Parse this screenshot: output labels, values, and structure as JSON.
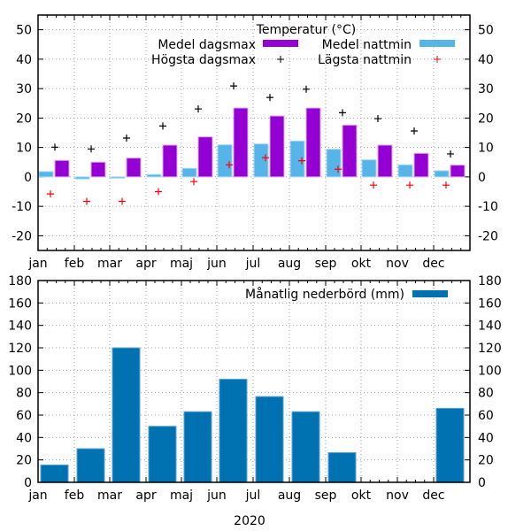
{
  "chart_data": [
    {
      "type": "bar",
      "title": "Temperatur (°C)",
      "categories": [
        "jan",
        "feb",
        "mar",
        "apr",
        "maj",
        "jun",
        "jul",
        "aug",
        "sep",
        "okt",
        "nov",
        "dec"
      ],
      "ylim": [
        -25,
        55
      ],
      "yticks": [
        -20,
        -10,
        0,
        10,
        20,
        30,
        40,
        50
      ],
      "grid": true,
      "legend": "top-right",
      "series": [
        {
          "name": "Medel dagsmax",
          "kind": "bar",
          "color": "#9400d3",
          "values": [
            5.6,
            5.0,
            6.4,
            10.8,
            13.6,
            23.4,
            20.7,
            23.4,
            17.6,
            10.8,
            8.0,
            4.0
          ]
        },
        {
          "name": "Medel nattmin",
          "kind": "bar",
          "color": "#56b4e9",
          "values": [
            1.8,
            -0.7,
            -0.4,
            0.8,
            2.9,
            10.9,
            11.2,
            12.2,
            9.4,
            5.8,
            4.1,
            2.1
          ]
        },
        {
          "name": "Högsta dagsmax",
          "kind": "point",
          "color": "#000000",
          "values": [
            10.1,
            9.5,
            13.2,
            17.3,
            23.1,
            30.9,
            27.0,
            29.8,
            21.8,
            19.8,
            15.6,
            7.8
          ]
        },
        {
          "name": "Lägsta nattmin",
          "kind": "point",
          "color": "#ff0000",
          "values": [
            -5.8,
            -8.3,
            -8.3,
            -5.0,
            -1.6,
            4.1,
            6.5,
            5.5,
            2.6,
            -2.8,
            -2.8,
            -2.8
          ]
        }
      ]
    },
    {
      "type": "bar",
      "categories": [
        "jan",
        "feb",
        "mar",
        "apr",
        "maj",
        "jun",
        "jul",
        "aug",
        "sep",
        "okt",
        "nov",
        "dec"
      ],
      "xlabel": "2020",
      "ylim": [
        0,
        180
      ],
      "yticks": [
        0,
        20,
        40,
        60,
        80,
        100,
        120,
        140,
        160,
        180
      ],
      "grid": true,
      "legend": "top-right",
      "series": [
        {
          "name": "Månatlig nederbörd (mm)",
          "kind": "bar",
          "color": "#0072b2",
          "values": [
            15.5,
            30,
            120,
            50,
            63,
            92,
            76.5,
            63,
            26.5,
            0,
            0,
            66
          ]
        }
      ]
    }
  ]
}
